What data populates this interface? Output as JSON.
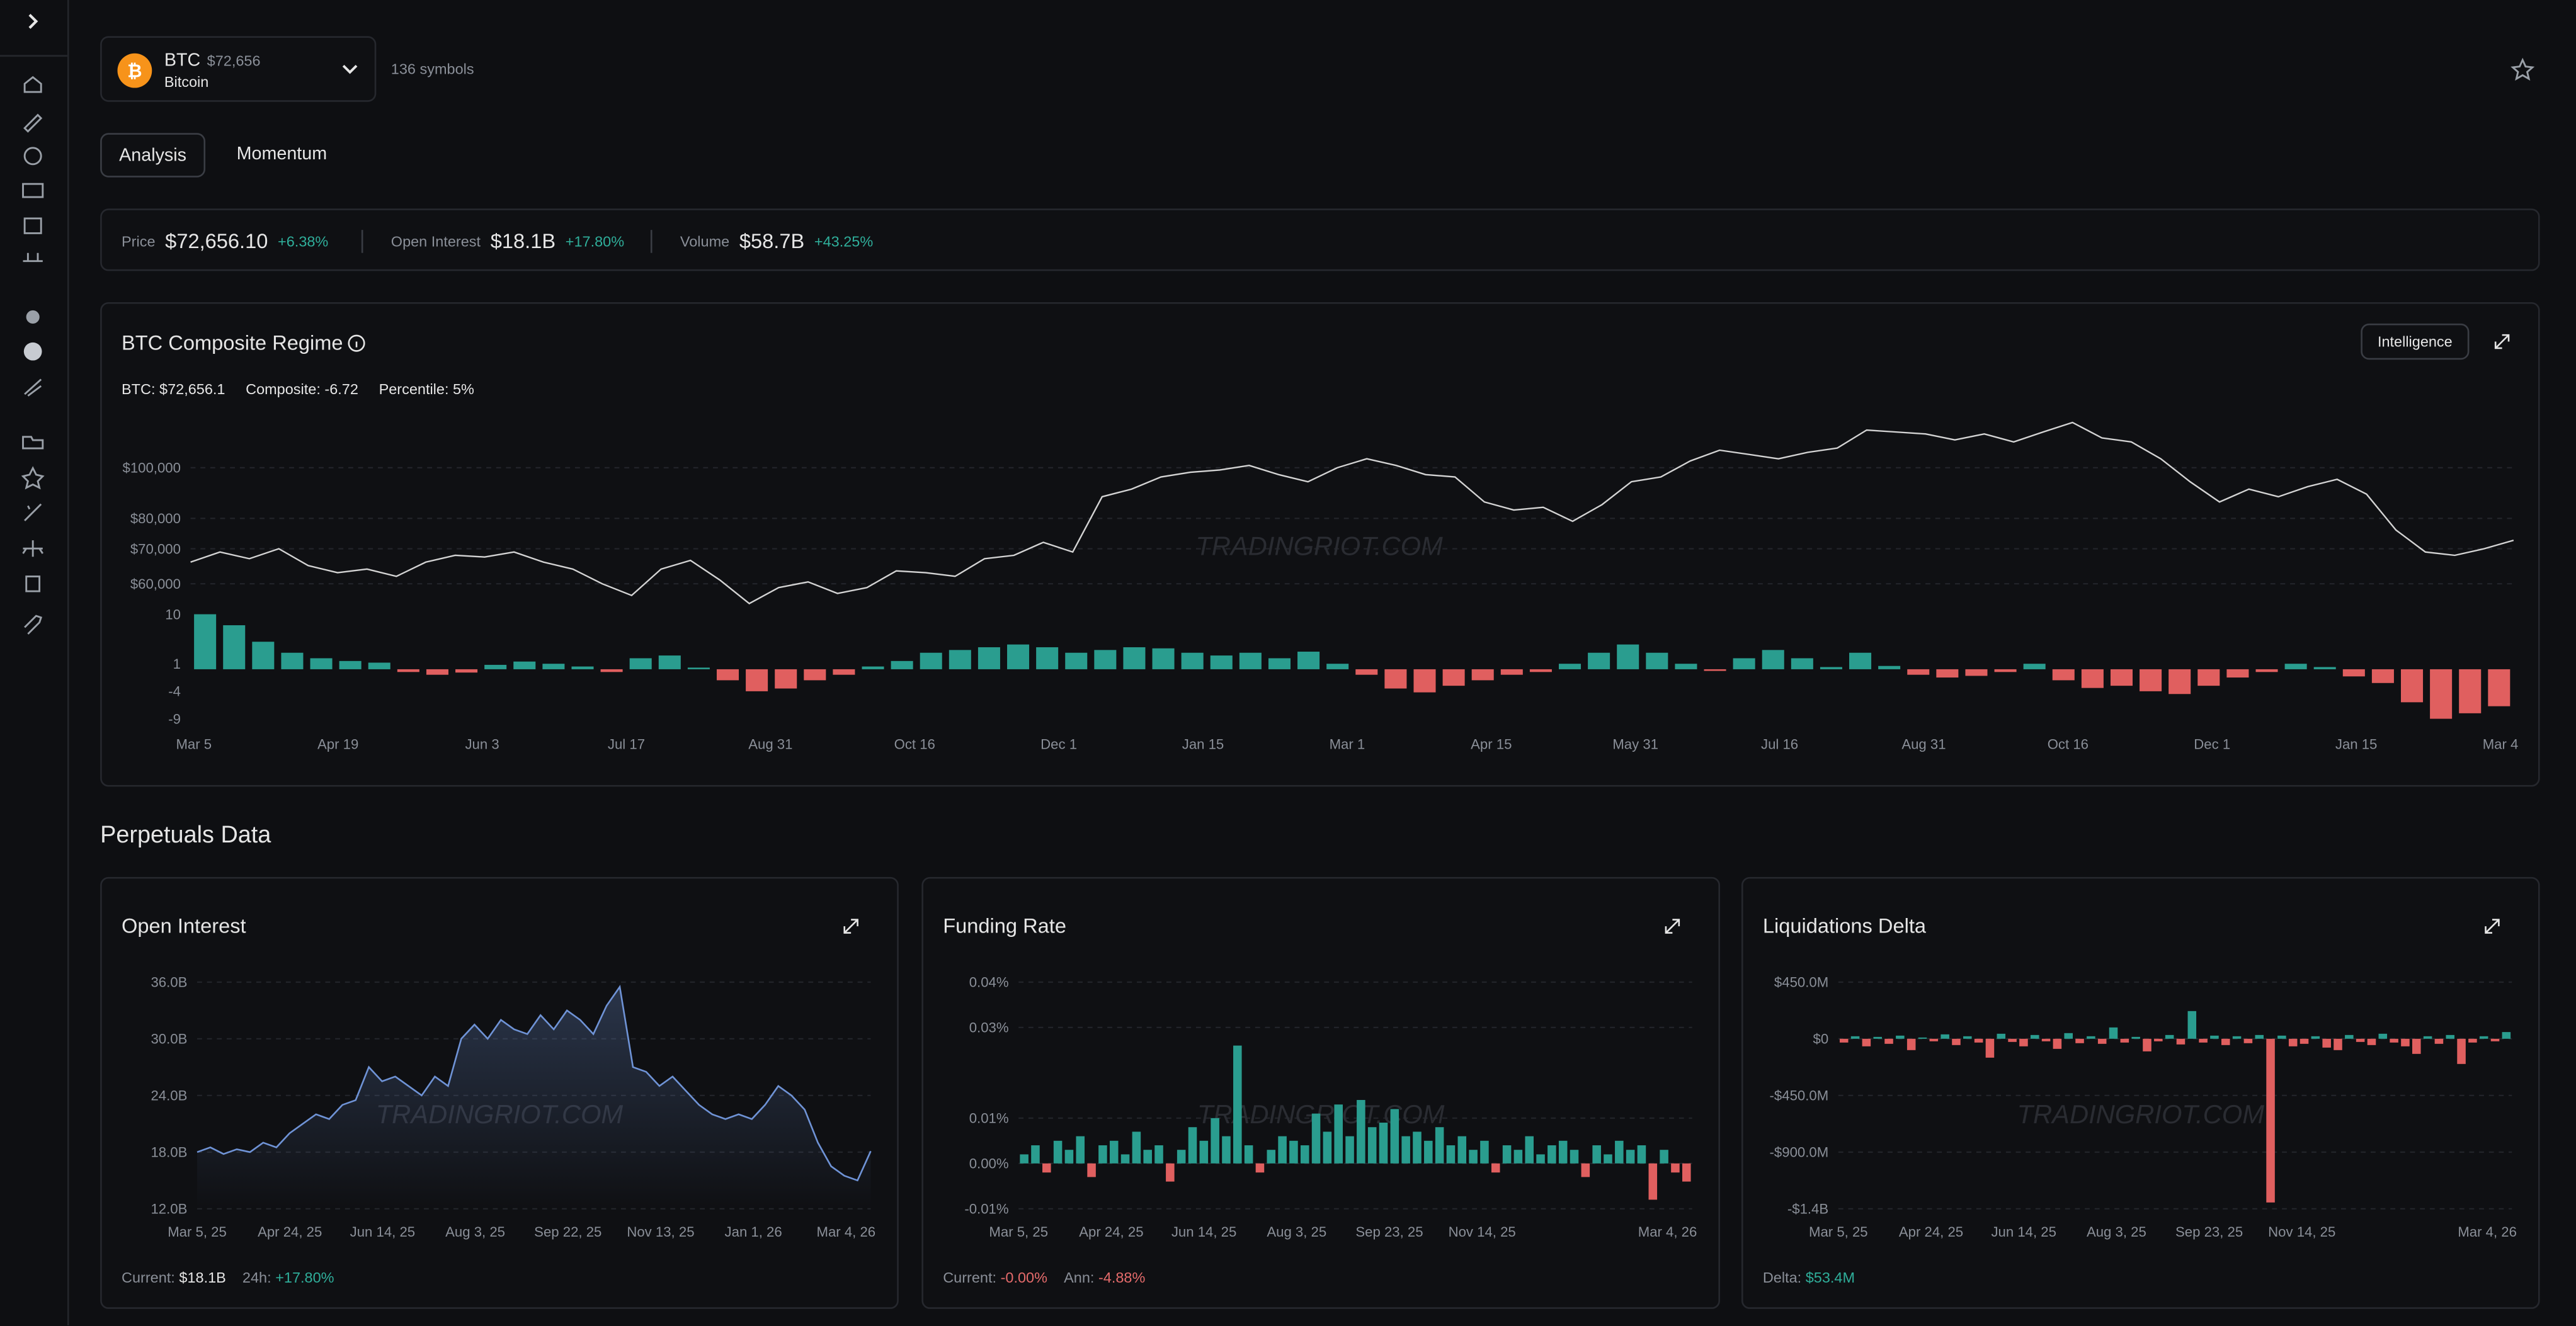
{
  "header": {
    "symbol": "BTC",
    "price": "$72,656",
    "name": "Bitcoin",
    "symbol_count": "136 symbols"
  },
  "tabs": [
    "Analysis",
    "Momentum"
  ],
  "stats": [
    {
      "label": "Price",
      "value": "$72,656.10",
      "change": "+6.38%"
    },
    {
      "label": "Open Interest",
      "value": "$18.1B",
      "change": "+17.80%"
    },
    {
      "label": "Volume",
      "value": "$58.7B",
      "change": "+43.25%"
    }
  ],
  "regime": {
    "title": "BTC Composite Regime",
    "button": "Intelligence",
    "legend": [
      "BTC: $72,656.1",
      "Composite: -6.72",
      "Percentile: 5%"
    ],
    "watermark": "TRADINGRIOT.COM",
    "x_labels": [
      "Mar 5",
      "Apr 19",
      "Jun 3",
      "Jul 17",
      "Aug 31",
      "Oct 16",
      "Dec 1",
      "Jan 15",
      "Mar 1",
      "Apr 15",
      "May 31",
      "Jul 16",
      "Aug 31",
      "Oct 16",
      "Dec 1",
      "Jan 15",
      "Mar 4"
    ],
    "price": {
      "type": "line",
      "color": "#d4d4d4",
      "log_scale": true,
      "grid": true,
      "ylim": [
        56000,
        124000
      ],
      "yticks": [
        {
          "value": 60000,
          "label": "$60,000"
        },
        {
          "value": 70000,
          "label": "$70,000"
        },
        {
          "value": 80000,
          "label": "$80,000"
        },
        {
          "value": 100000,
          "label": "$100,000"
        }
      ],
      "values": [
        66000,
        69000,
        67000,
        70000,
        65000,
        63000,
        64000,
        62000,
        66000,
        68000,
        67500,
        69000,
        66000,
        64000,
        60000,
        57000,
        64000,
        66500,
        61000,
        55000,
        59000,
        60500,
        57500,
        59000,
        63500,
        63000,
        62000,
        67000,
        68000,
        72000,
        69000,
        88000,
        91000,
        96000,
        98000,
        99000,
        101000,
        97000,
        94000,
        100000,
        104000,
        101000,
        97000,
        96000,
        86000,
        83000,
        84000,
        79000,
        85000,
        94000,
        96000,
        103000,
        108000,
        106000,
        104000,
        107000,
        109000,
        118000,
        117000,
        116000,
        113000,
        116000,
        112000,
        117000,
        122000,
        114000,
        112000,
        104000,
        94000,
        86000,
        91000,
        88000,
        92000,
        95000,
        89000,
        76000,
        69000,
        68000,
        70000,
        72656.1
      ]
    },
    "composite": {
      "type": "bar",
      "positive_color": "#2a9d8f",
      "negative_color": "#e05f5f",
      "ylim": [
        -10,
        10
      ],
      "yticks": [
        -9,
        -4,
        1,
        10
      ],
      "values": [
        10,
        8,
        5,
        3,
        2,
        1.5,
        1.2,
        -0.5,
        -1,
        -0.6,
        0.8,
        1.4,
        1,
        0.5,
        -0.5,
        2,
        2.5,
        0.3,
        -2,
        -4,
        -3.5,
        -2,
        -1,
        0.5,
        1.5,
        3,
        3.5,
        4,
        4.5,
        4,
        3,
        3.5,
        4,
        3.8,
        3,
        2.5,
        3,
        2,
        3.2,
        1,
        -1,
        -3.5,
        -4.2,
        -3,
        -2,
        -1,
        -0.5,
        1,
        3,
        4.5,
        3,
        1,
        -0.3,
        2,
        3.5,
        2,
        0.4,
        3,
        0.6,
        -1,
        -1.5,
        -1.2,
        -0.5,
        1,
        -2,
        -3.4,
        -3,
        -4,
        -4.5,
        -3,
        -1.5,
        -0.5,
        1,
        0.4,
        -1.3,
        -2.5,
        -6,
        -9,
        -8,
        -6.72
      ]
    }
  },
  "perpetuals": {
    "title": "Perpetuals Data",
    "charts": [
      {
        "title": "Open Interest",
        "type": "area",
        "color": "#6f93d6",
        "grid": true,
        "watermark": "TRADINGRIOT.COM",
        "x_labels": [
          "Mar 5, 25",
          "Apr 24, 25",
          "Jun 14, 25",
          "Aug 3, 25",
          "Sep 22, 25",
          "Nov 13, 25",
          "Jan 1, 26",
          "Mar 4, 26"
        ],
        "ylim": [
          12,
          36
        ],
        "yticks": [
          {
            "value": 12,
            "label": "12.0B"
          },
          {
            "value": 18,
            "label": "18.0B"
          },
          {
            "value": 24,
            "label": "24.0B"
          },
          {
            "value": 30,
            "label": "30.0B"
          },
          {
            "value": 36,
            "label": "36.0B"
          }
        ],
        "values": [
          18,
          18.5,
          17.8,
          18.3,
          18,
          19,
          18.5,
          20,
          21,
          22,
          21.5,
          23,
          23.5,
          27,
          25.5,
          26,
          25,
          24,
          26,
          25,
          30,
          31.5,
          30,
          32,
          31,
          30.5,
          32.5,
          31,
          33,
          32,
          30.5,
          33.5,
          35.5,
          27,
          26.5,
          25,
          26,
          24.5,
          23,
          22,
          21.5,
          22,
          21.5,
          23,
          25,
          24,
          22.5,
          19,
          16.5,
          15.5,
          15,
          18.1
        ],
        "footer": [
          {
            "label": "Current:",
            "value": "$18.1B"
          },
          {
            "label": "24h:",
            "value": "+17.80%"
          }
        ]
      },
      {
        "title": "Funding Rate",
        "type": "bar",
        "positive_color": "#2a9d8f",
        "negative_color": "#e05f5f",
        "grid": true,
        "watermark": "TRADINGRIOT.COM",
        "x_labels": [
          "Mar 5, 25",
          "Apr 24, 25",
          "Jun 14, 25",
          "Aug 3, 25",
          "Sep 23, 25",
          "Nov 14, 25",
          null,
          "Mar 4, 26"
        ],
        "ylim": [
          -0.01,
          0.04
        ],
        "yticks": [
          {
            "value": -0.01,
            "label": "-0.01%"
          },
          {
            "value": 0,
            "label": "0.00%"
          },
          {
            "value": 0.01,
            "label": "0.01%"
          },
          {
            "value": 0.03,
            "label": "0.03%"
          },
          {
            "value": 0.04,
            "label": "0.04%"
          }
        ],
        "values": [
          0.002,
          0.004,
          -0.002,
          0.005,
          0.003,
          0.006,
          -0.003,
          0.004,
          0.005,
          0.002,
          0.007,
          0.003,
          0.004,
          -0.004,
          0.003,
          0.008,
          0.005,
          0.01,
          0.006,
          0.026,
          0.004,
          -0.002,
          0.003,
          0.006,
          0.005,
          0.004,
          0.011,
          0.007,
          0.013,
          0.006,
          0.014,
          0.008,
          0.009,
          0.012,
          0.006,
          0.007,
          0.005,
          0.008,
          0.004,
          0.006,
          0.003,
          0.005,
          -0.002,
          0.004,
          0.003,
          0.006,
          0.002,
          0.004,
          0.005,
          0.003,
          -0.003,
          0.004,
          0.002,
          0.005,
          0.003,
          0.004,
          -0.008,
          0.003,
          -0.002,
          -0.004
        ],
        "footer": [
          {
            "label": "Current:",
            "value": "-0.00%"
          },
          {
            "label": "Ann:",
            "value": "-4.88%"
          }
        ]
      },
      {
        "title": "Liquidations Delta",
        "type": "bar",
        "positive_color": "#2a9d8f",
        "negative_color": "#e05f5f",
        "grid": true,
        "watermark": "TRADINGRIOT.COM",
        "x_labels": [
          "Mar 5, 25",
          "Apr 24, 25",
          "Jun 14, 25",
          "Aug 3, 25",
          "Sep 23, 25",
          "Nov 14, 25",
          null,
          "Mar 4, 26"
        ],
        "ylim": [
          -1350,
          450
        ],
        "yticks": [
          {
            "value": -1350,
            "label": "-$1.4B"
          },
          {
            "value": -900,
            "label": "-$900.0M"
          },
          {
            "value": -450,
            "label": "-$450.0M"
          },
          {
            "value": 0,
            "label": "$0"
          },
          {
            "value": 450,
            "label": "$450.0M"
          }
        ],
        "values": [
          -30,
          20,
          -60,
          15,
          -40,
          25,
          -90,
          10,
          -20,
          35,
          -50,
          20,
          -30,
          -150,
          40,
          -25,
          -60,
          30,
          -20,
          -80,
          45,
          -35,
          20,
          -40,
          90,
          -30,
          15,
          -100,
          -20,
          30,
          -45,
          220,
          -30,
          25,
          -50,
          20,
          -35,
          30,
          -1300,
          25,
          -60,
          -40,
          20,
          -70,
          -90,
          30,
          -25,
          -50,
          40,
          -30,
          -60,
          -120,
          20,
          -40,
          30,
          -200,
          -30,
          20,
          -20,
          53.4
        ],
        "footer": [
          {
            "label": "Delta:",
            "value": "$53.4M"
          }
        ]
      }
    ]
  }
}
